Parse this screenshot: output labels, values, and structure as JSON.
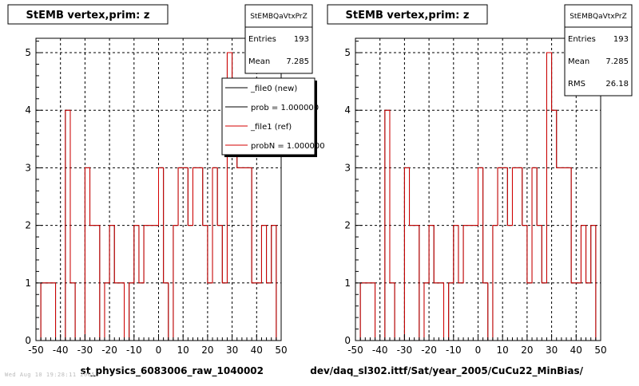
{
  "panels": [
    {
      "title": "StEMB  vertex,prim: z",
      "xlabel": "st_physics_6083006_raw_1040002",
      "stats": {
        "name": "StEMBQaVtxPrZ",
        "rows": [
          {
            "label": "Entries",
            "value": "193"
          },
          {
            "label": "Mean",
            "value": "7.285"
          }
        ]
      },
      "legend": [
        {
          "label": "_file0 (new)",
          "color": "#000000"
        },
        {
          "label": "prob = 1.000000",
          "color": "#000000"
        },
        {
          "label": "_file1 (ref)",
          "color": "#d40000"
        },
        {
          "label": "probN = 1.000000",
          "color": "#d40000"
        }
      ]
    },
    {
      "title": "StEMB  vertex,prim: z",
      "xlabel": "dev/daq_sl302.ittf/Sat/year_2005/CuCu22_MinBias/",
      "stats": {
        "name": "StEMBQaVtxPrZ",
        "rows": [
          {
            "label": "Entries",
            "value": "193"
          },
          {
            "label": "Mean",
            "value": "7.285"
          },
          {
            "label": "RMS",
            "value": "26.18"
          }
        ]
      }
    }
  ],
  "footer": "Wed Aug 10 19:28:11 2005",
  "chart_data": [
    {
      "type": "histogram",
      "series": [
        {
          "name": "_file0 (new)",
          "color": "#000000"
        },
        {
          "name": "_file1 (ref)",
          "color": "#d40000"
        }
      ],
      "bin_edges": [
        -50,
        -48,
        -46,
        -44,
        -42,
        -40,
        -38,
        -36,
        -34,
        -32,
        -30,
        -28,
        -26,
        -24,
        -22,
        -20,
        -18,
        -16,
        -14,
        -12,
        -10,
        -8,
        -6,
        -4,
        -2,
        0,
        2,
        4,
        6,
        8,
        10,
        12,
        14,
        16,
        18,
        20,
        22,
        24,
        26,
        28,
        30,
        32,
        34,
        36,
        38,
        40,
        42,
        44,
        46,
        48,
        50
      ],
      "values": [
        0,
        1,
        1,
        1,
        0,
        0,
        4,
        1,
        0,
        0,
        3,
        2,
        2,
        0,
        1,
        2,
        1,
        1,
        0,
        1,
        2,
        1,
        2,
        2,
        2,
        3,
        1,
        0,
        2,
        3,
        3,
        2,
        3,
        3,
        2,
        1,
        3,
        2,
        1,
        5,
        4,
        3,
        3,
        3,
        1,
        1,
        2,
        1,
        2,
        0
      ],
      "xlim": [
        -50,
        50
      ],
      "ylim": [
        0,
        5.25
      ],
      "xticks": [
        -50,
        -40,
        -30,
        -20,
        -10,
        0,
        10,
        20,
        30,
        40,
        50
      ],
      "yticks": [
        0,
        1,
        2,
        3,
        4,
        5
      ],
      "grid": true
    }
  ]
}
